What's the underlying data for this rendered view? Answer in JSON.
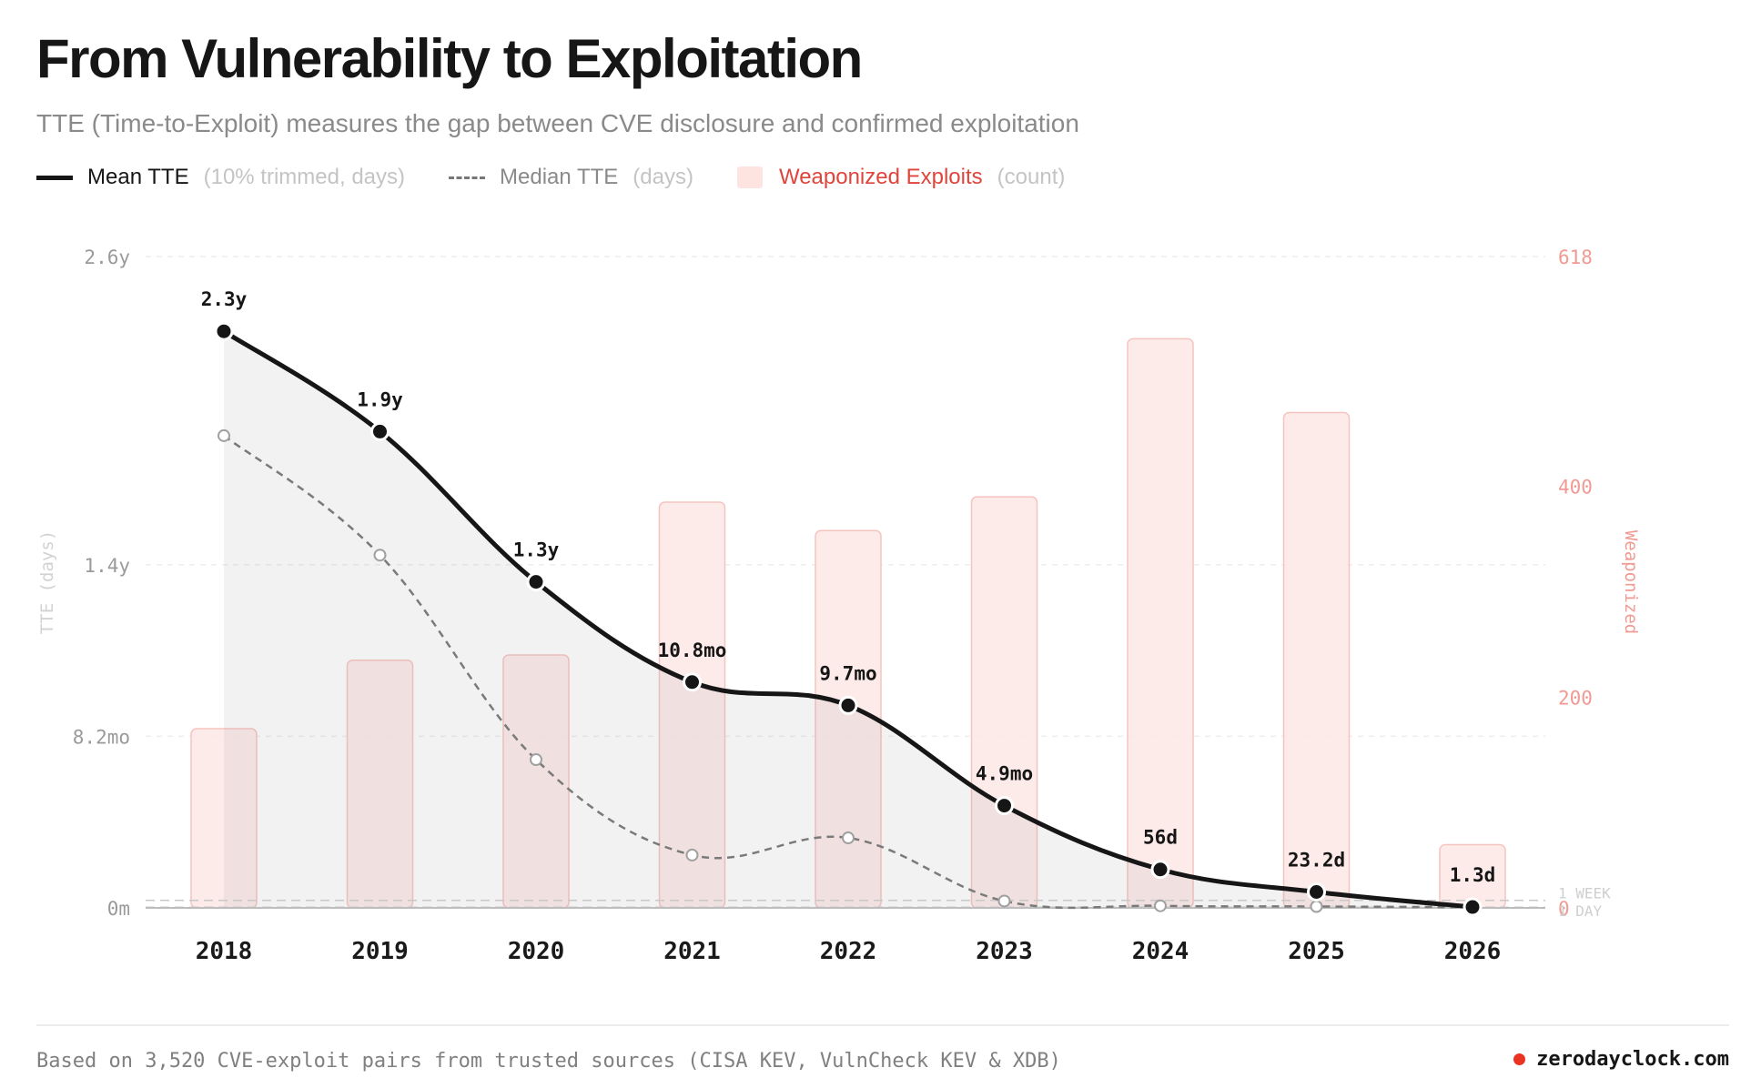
{
  "header": {
    "title": "From Vulnerability to Exploitation",
    "subtitle": "TTE (Time-to-Exploit) measures the gap between CVE disclosure and confirmed exploitation"
  },
  "legend": {
    "mean": {
      "name": "Mean TTE",
      "note": "(10% trimmed, days)"
    },
    "median": {
      "name": "Median TTE",
      "note": "(days)"
    },
    "weaponized": {
      "name": "Weaponized Exploits",
      "note": "(count)"
    }
  },
  "footer": {
    "note": "Based on 3,520 CVE-exploit pairs from trusted sources (CISA KEV, VulnCheck KEV & XDB)",
    "brand": "zerodayclock.com"
  },
  "colors": {
    "mean_line": "#161616",
    "median_line": "#7a7a7a",
    "bar_fill": "#fde8e6",
    "bar_stroke": "#f6c4bf",
    "accent_red": "#ea3323",
    "right_axis": "#f19a93"
  },
  "chart_data": {
    "type": "line",
    "categories": [
      "2018",
      "2019",
      "2020",
      "2021",
      "2022",
      "2023",
      "2024",
      "2025",
      "2026"
    ],
    "series": [
      {
        "name": "Mean TTE",
        "unit": "days",
        "axis": "left",
        "values": [
          840,
          694,
          475,
          329,
          295,
          149,
          56,
          23.2,
          1.3
        ],
        "labels": [
          "2.3y",
          "1.9y",
          "1.3y",
          "10.8mo",
          "9.7mo",
          "4.9mo",
          "56d",
          "23.2d",
          "1.3d"
        ]
      },
      {
        "name": "Median TTE",
        "unit": "days",
        "axis": "left",
        "values": [
          688,
          514,
          216,
          77,
          102,
          10,
          3,
          2,
          1
        ]
      },
      {
        "name": "Weaponized Exploits",
        "unit": "count",
        "axis": "right",
        "type": "bar",
        "values": [
          170,
          235,
          240,
          385,
          358,
          390,
          540,
          470,
          60
        ]
      }
    ],
    "y_left": {
      "label": "TTE (days)",
      "range": [
        0,
        949
      ],
      "ticks": [
        {
          "value": 0,
          "label": "0m"
        },
        {
          "value": 250,
          "label": "8.2mo"
        },
        {
          "value": 500,
          "label": "1.4y"
        },
        {
          "value": 949,
          "label": "2.6y"
        }
      ]
    },
    "y_right": {
      "label": "Weaponized",
      "range": [
        0,
        618
      ],
      "ticks": [
        {
          "value": 0,
          "label": "0"
        },
        {
          "value": 200,
          "label": "200"
        },
        {
          "value": 400,
          "label": "400"
        },
        {
          "value": 618,
          "label": "618"
        }
      ]
    },
    "reference_lines": [
      {
        "label": "1 WEEK",
        "value": 7
      },
      {
        "label": "1 DAY",
        "value": 1
      }
    ],
    "grid": true,
    "legend_position": "top-left"
  }
}
